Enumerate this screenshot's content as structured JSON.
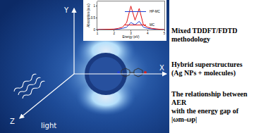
{
  "figure": {
    "axis_labels": {
      "x": "X",
      "y": "Y",
      "z": "Z"
    },
    "light_label": "light",
    "notes": [
      [
        "Mixed TDDFT/FDTD",
        "methodology"
      ],
      [
        "Hybrid superstructures",
        "(Ag NPs + molecules)"
      ],
      [
        "The relationship  between AER",
        "with the energy gap of",
        "|ωm-ωp|"
      ]
    ]
  },
  "chart_data": {
    "type": "line",
    "x_label": "Energy (eV)",
    "y_label": "Absorption (a.u.)",
    "x": [
      1,
      1.25,
      1.5,
      1.75,
      2,
      2.25,
      2.5,
      2.75,
      3,
      3.25,
      3.5,
      3.75,
      4,
      4.25,
      4.5,
      4.75,
      5
    ],
    "series": [
      {
        "name": "HP-MC",
        "color": "#1f3fd0",
        "values": [
          0,
          0,
          0,
          0,
          0.01,
          0.02,
          0.05,
          0.1,
          0.3,
          0.2,
          0.35,
          0.1,
          0.05,
          0.02,
          0.01,
          0,
          0
        ]
      },
      {
        "name": "MC",
        "color": "#e01010",
        "values": [
          0,
          0,
          0,
          0,
          0.02,
          0.05,
          0.1,
          0.3,
          1.0,
          0.4,
          0.9,
          0.2,
          0.1,
          0.05,
          0.02,
          0.01,
          0
        ]
      }
    ],
    "xlim": [
      1,
      5
    ],
    "xticks": [
      1,
      2,
      3,
      4,
      5
    ],
    "ylim": [
      0,
      1.2
    ],
    "yticks": [
      0,
      0.5,
      1
    ],
    "legend": "upper right"
  }
}
